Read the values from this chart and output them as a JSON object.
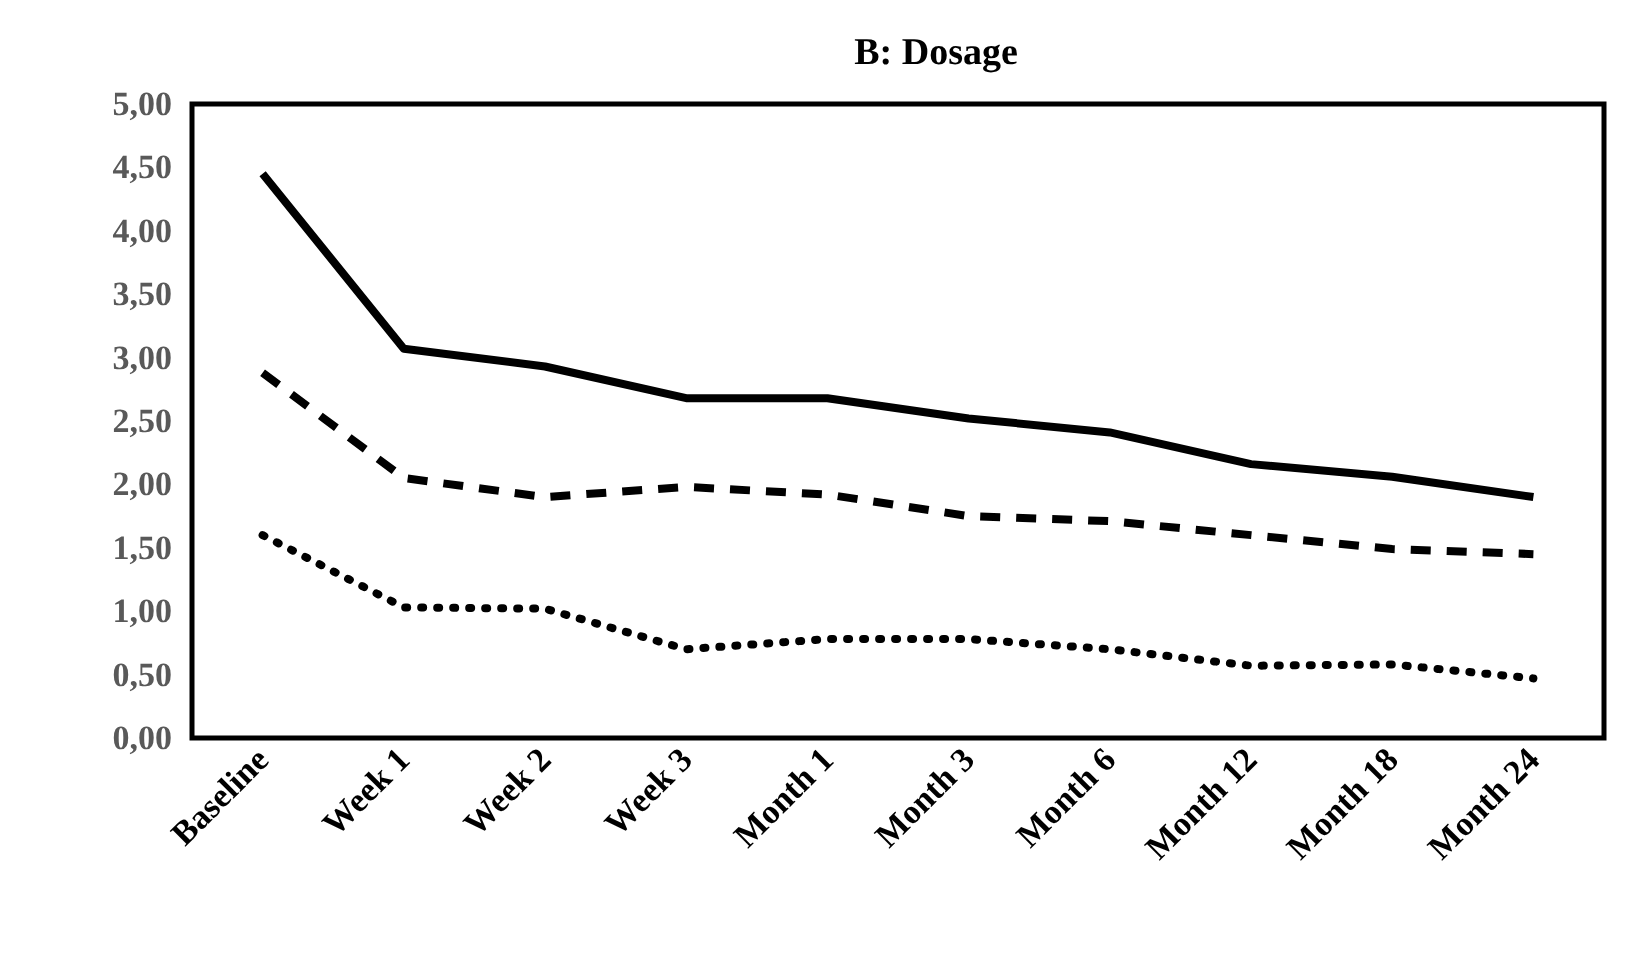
{
  "chart_data": {
    "type": "line",
    "title": "B: Dosage",
    "categories": [
      "Baseline",
      "Week 1",
      "Week 2",
      "Week 3",
      "Month 1",
      "Month 3",
      "Month 6",
      "Month 12",
      "Month 18",
      "Month 24"
    ],
    "series": [
      {
        "color": "#000000",
        "line_style": "solid",
        "values": [
          4.45,
          3.07,
          2.93,
          2.68,
          2.68,
          2.52,
          2.41,
          2.16,
          2.06,
          1.9
        ]
      },
      {
        "color": "#000000",
        "line_style": "dashed",
        "values": [
          2.88,
          2.05,
          1.9,
          1.98,
          1.92,
          1.75,
          1.71,
          1.6,
          1.49,
          1.45
        ]
      },
      {
        "color": "#000000",
        "line_style": "dotted",
        "values": [
          1.6,
          1.03,
          1.02,
          0.7,
          0.78,
          0.78,
          0.7,
          0.57,
          0.58,
          0.47
        ]
      }
    ],
    "ylim": [
      0,
      5
    ],
    "yticks": [
      {
        "value": 0,
        "label": "0,00"
      },
      {
        "value": 0.5,
        "label": "0,50"
      },
      {
        "value": 1,
        "label": "1,00"
      },
      {
        "value": 1.5,
        "label": "1,50"
      },
      {
        "value": 2,
        "label": "2,00"
      },
      {
        "value": 2.5,
        "label": "2,50"
      },
      {
        "value": 3,
        "label": "3,00"
      },
      {
        "value": 3.5,
        "label": "3,50"
      },
      {
        "value": 4,
        "label": "4,00"
      },
      {
        "value": 4.5,
        "label": "4,50"
      },
      {
        "value": 5,
        "label": "5,00"
      }
    ],
    "grid": false,
    "marker": "none"
  }
}
